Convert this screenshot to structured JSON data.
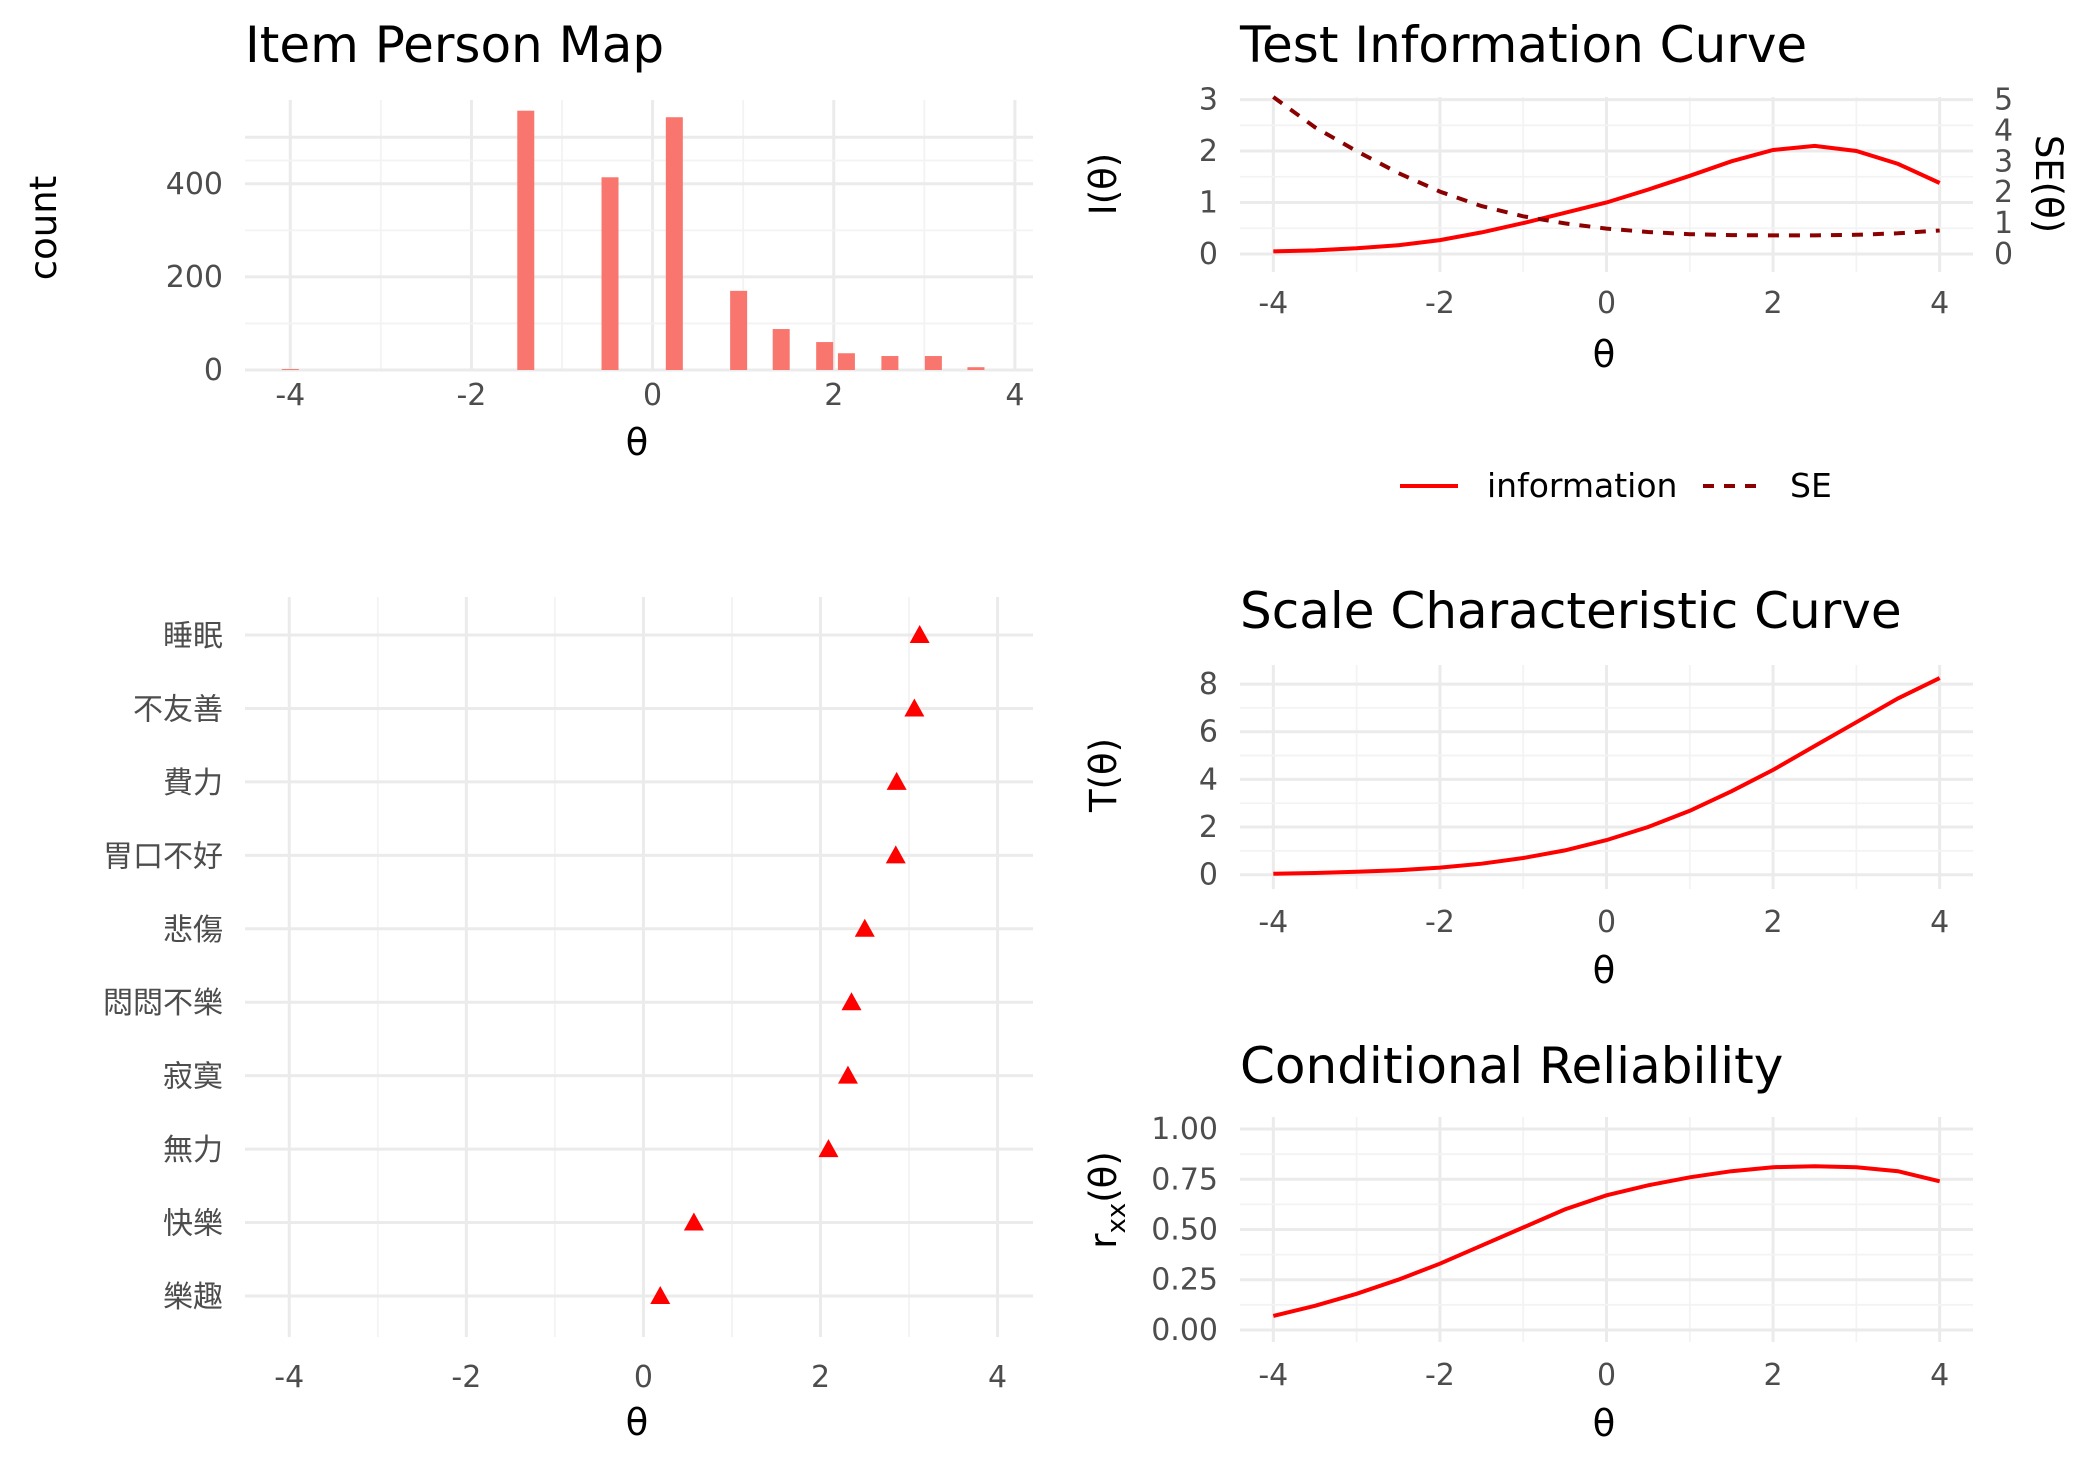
{
  "colors": {
    "info": "#ff0000",
    "se": "#8b0000",
    "bar": "#f8766d",
    "tri": "#ff0000"
  },
  "legend": {
    "information_label": "information",
    "se_label": "SE"
  },
  "chart_data": [
    {
      "id": "hist",
      "type": "bar",
      "title": "Item Person Map",
      "xlabel": "θ",
      "ylabel": "count",
      "xlim": [
        -4.5,
        4.2
      ],
      "ylim": [
        0,
        580
      ],
      "xticks": [
        -4,
        -2,
        0,
        2,
        4
      ],
      "xtick_labels": [
        "-4",
        "-2",
        "0",
        "2",
        "4"
      ],
      "yticks": [
        0,
        200,
        400
      ],
      "ytick_labels": [
        "0",
        "200",
        "400"
      ],
      "grid": true,
      "x": [
        -4.0,
        -1.4,
        -0.47,
        0.24,
        0.95,
        1.42,
        1.9,
        2.14,
        2.62,
        3.1,
        3.57
      ],
      "values": [
        2,
        557,
        414,
        543,
        170,
        88,
        60,
        36,
        30,
        30,
        6
      ]
    },
    {
      "id": "items",
      "type": "scatter",
      "title": "",
      "xlabel": "θ",
      "ylabel": "",
      "xlim": [
        -4.5,
        4.4
      ],
      "xticks": [
        -4,
        -2,
        0,
        2,
        4
      ],
      "xtick_labels": [
        "-4",
        "-2",
        "0",
        "2",
        "4"
      ],
      "grid": true,
      "categories": [
        "睡眠",
        "不友善",
        "費力",
        "胃口不好",
        "悲傷",
        "悶悶不樂",
        "寂寞",
        "無力",
        "快樂",
        "樂趣"
      ],
      "values": [
        3.12,
        3.06,
        2.86,
        2.85,
        2.5,
        2.35,
        2.31,
        2.09,
        0.57,
        0.19
      ]
    },
    {
      "id": "tic",
      "type": "line",
      "title": "Test Information Curve",
      "xlabel": "θ",
      "ylabel": "I(θ)",
      "ylabel_right": "SE(θ)",
      "xlim": [
        -4.4,
        4.4
      ],
      "ylim": [
        -0.35,
        3.05
      ],
      "ylim_right": [
        -0.583,
        5.08
      ],
      "xticks": [
        -4,
        -2,
        0,
        2,
        4
      ],
      "xtick_labels": [
        "-4",
        "-2",
        "0",
        "2",
        "4"
      ],
      "yticks": [
        0,
        1,
        2,
        3
      ],
      "ytick_labels": [
        "0",
        "1",
        "2",
        "3"
      ],
      "yticks_right": [
        0,
        1,
        2,
        3,
        4,
        5
      ],
      "ytick_labels_right": [
        "0",
        "1",
        "2",
        "3",
        "4",
        "5"
      ],
      "grid": true,
      "legend_position": "bottom",
      "x": [
        -4,
        -3.5,
        -3,
        -2.5,
        -2,
        -1.5,
        -1,
        -0.5,
        0,
        0.5,
        1,
        1.5,
        2,
        2.5,
        3,
        3.5,
        4
      ],
      "series": [
        {
          "name": "information",
          "style": "solid",
          "axis": "left",
          "values": [
            0.05,
            0.07,
            0.11,
            0.17,
            0.27,
            0.42,
            0.6,
            0.8,
            1.0,
            1.25,
            1.52,
            1.8,
            2.02,
            2.1,
            2.0,
            1.75,
            1.38
          ]
        },
        {
          "name": "SE",
          "style": "dashed",
          "axis": "right",
          "values": [
            5.08,
            4.1,
            3.33,
            2.62,
            2.02,
            1.55,
            1.22,
            0.99,
            0.82,
            0.71,
            0.64,
            0.61,
            0.6,
            0.6,
            0.62,
            0.67,
            0.76
          ]
        }
      ]
    },
    {
      "id": "scc",
      "type": "line",
      "title": "Scale Characteristic Curve",
      "xlabel": "θ",
      "ylabel": "T(θ)",
      "xlim": [
        -4.4,
        4.4
      ],
      "ylim": [
        -0.6,
        8.8
      ],
      "xticks": [
        -4,
        -2,
        0,
        2,
        4
      ],
      "xtick_labels": [
        "-4",
        "-2",
        "0",
        "2",
        "4"
      ],
      "yticks": [
        0,
        2,
        4,
        6,
        8
      ],
      "ytick_labels": [
        "0",
        "2",
        "4",
        "6",
        "8"
      ],
      "grid": true,
      "x": [
        -4,
        -3.5,
        -3,
        -2.5,
        -2,
        -1.5,
        -1,
        -0.5,
        0,
        0.5,
        1,
        1.5,
        2,
        2.5,
        3,
        3.5,
        4
      ],
      "series": [
        {
          "name": "",
          "style": "solid",
          "values": [
            0.04,
            0.07,
            0.12,
            0.19,
            0.3,
            0.46,
            0.7,
            1.02,
            1.45,
            2.0,
            2.68,
            3.5,
            4.4,
            5.4,
            6.4,
            7.4,
            8.25
          ]
        }
      ]
    },
    {
      "id": "rel",
      "type": "line",
      "title": "Conditional Reliability",
      "xlabel": "θ",
      "ylabel": "r_xx(θ)",
      "xlim": [
        -4.4,
        4.4
      ],
      "ylim": [
        -0.06,
        1.06
      ],
      "xticks": [
        -4,
        -2,
        0,
        2,
        4
      ],
      "xtick_labels": [
        "-4",
        "-2",
        "0",
        "2",
        "4"
      ],
      "yticks": [
        0,
        0.25,
        0.5,
        0.75,
        1.0
      ],
      "ytick_labels": [
        "0.00",
        "0.25",
        "0.50",
        "0.75",
        "1.00"
      ],
      "grid": true,
      "x": [
        -4,
        -3.5,
        -3,
        -2.5,
        -2,
        -1.5,
        -1,
        -0.5,
        0,
        0.5,
        1,
        1.5,
        2,
        2.5,
        3,
        3.5,
        4
      ],
      "series": [
        {
          "name": "",
          "style": "solid",
          "values": [
            0.07,
            0.12,
            0.18,
            0.25,
            0.33,
            0.42,
            0.51,
            0.6,
            0.67,
            0.72,
            0.76,
            0.79,
            0.81,
            0.815,
            0.81,
            0.79,
            0.74
          ]
        }
      ]
    }
  ]
}
